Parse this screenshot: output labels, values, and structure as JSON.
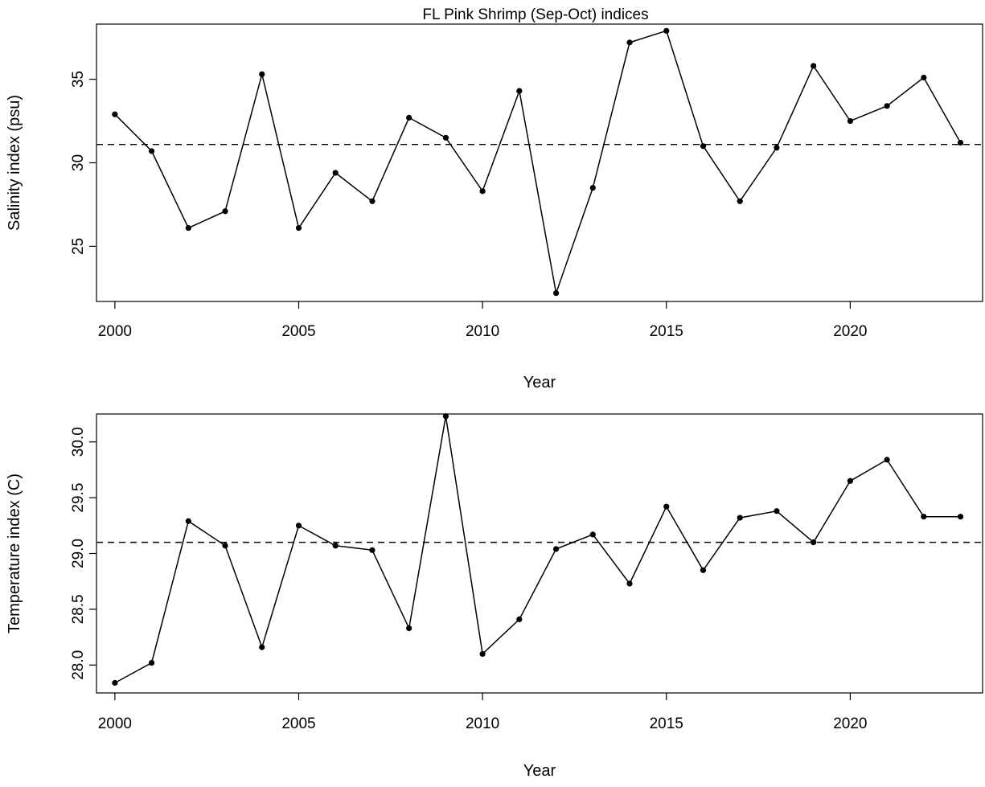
{
  "chart_data": [
    {
      "type": "line",
      "title": "FL Pink Shrimp (Sep-Oct) indices",
      "xlabel": "Year",
      "ylabel": "Salinity index (psu)",
      "xlim": [
        1999.5,
        2023.6
      ],
      "ylim": [
        21.7,
        38.3
      ],
      "x_ticks": [
        2000,
        2005,
        2010,
        2015,
        2020
      ],
      "y_ticks": [
        25,
        30,
        35
      ],
      "grid": false,
      "reference_line": {
        "value": 31.1,
        "style": "dashed"
      },
      "x": [
        2000,
        2001,
        2002,
        2003,
        2004,
        2005,
        2006,
        2007,
        2008,
        2009,
        2010,
        2011,
        2012,
        2013,
        2014,
        2015,
        2016,
        2017,
        2018,
        2019,
        2020,
        2021,
        2022,
        2023
      ],
      "values": [
        32.9,
        30.7,
        26.1,
        27.1,
        35.3,
        26.1,
        29.4,
        27.7,
        32.7,
        31.5,
        28.3,
        34.3,
        22.2,
        28.5,
        37.2,
        37.9,
        31.0,
        27.7,
        30.9,
        35.8,
        32.5,
        33.4,
        35.1,
        31.2
      ]
    },
    {
      "type": "line",
      "title": "",
      "xlabel": "Year",
      "ylabel": "Temperature index (C)",
      "xlim": [
        1999.5,
        2023.6
      ],
      "ylim": [
        27.75,
        30.25
      ],
      "x_ticks": [
        2000,
        2005,
        2010,
        2015,
        2020
      ],
      "y_ticks": [
        28.0,
        28.5,
        29.0,
        29.5,
        30.0
      ],
      "y_tick_labels": [
        "28.0",
        "28.5",
        "29.0",
        "29.5",
        "30.0"
      ],
      "grid": false,
      "reference_line": {
        "value": 29.1,
        "style": "dashed"
      },
      "x": [
        2000,
        2001,
        2002,
        2003,
        2004,
        2005,
        2006,
        2007,
        2008,
        2009,
        2010,
        2011,
        2012,
        2013,
        2014,
        2015,
        2016,
        2017,
        2018,
        2019,
        2020,
        2021,
        2022,
        2023
      ],
      "values": [
        27.84,
        28.02,
        29.29,
        29.07,
        28.16,
        29.25,
        29.07,
        29.03,
        28.33,
        30.23,
        28.1,
        28.41,
        29.04,
        29.17,
        28.73,
        29.42,
        28.85,
        29.32,
        29.38,
        29.1,
        29.65,
        29.84,
        29.33,
        29.33
      ]
    }
  ]
}
